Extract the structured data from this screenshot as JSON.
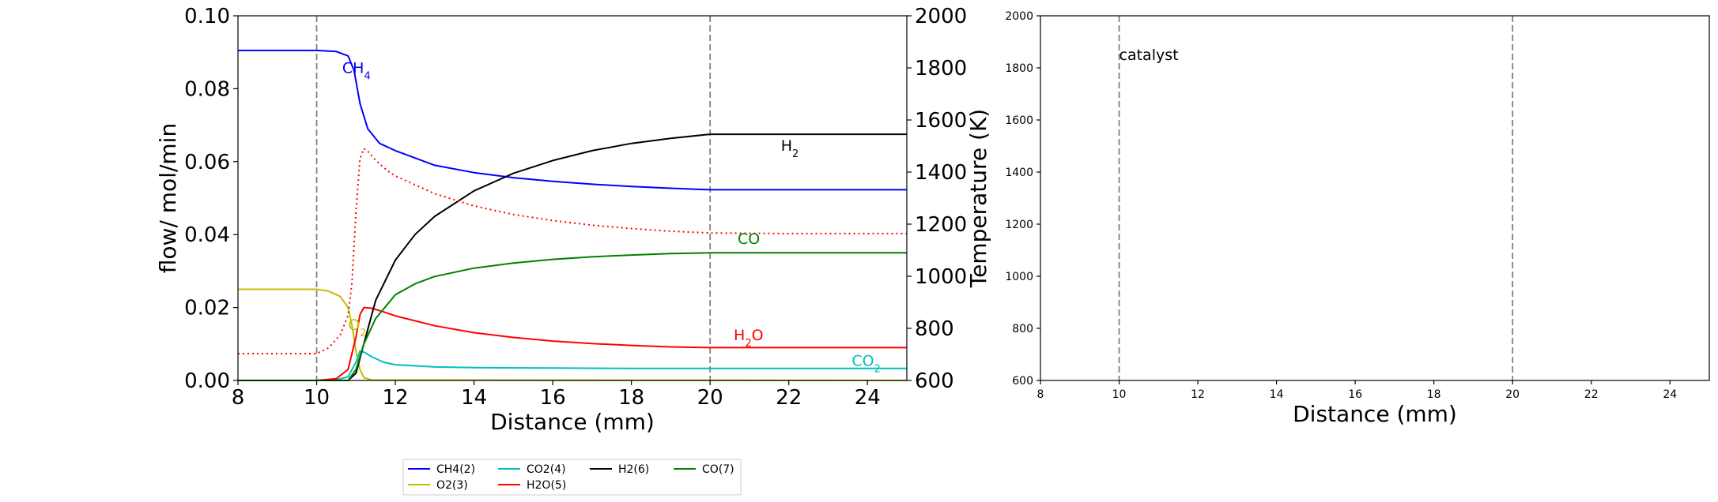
{
  "colors": {
    "CH4": "#0000ff",
    "O2": "#bfbf00",
    "CO2": "#00bfbf",
    "H2O": "#ff0000",
    "H2": "#000000",
    "CO": "#008000",
    "vline": "#808080"
  },
  "chart_data": [
    {
      "type": "line",
      "panel": "left",
      "xlabel": "Distance (mm)",
      "ylabel": "flow/ mol/min",
      "y2label": "Temperature (K)",
      "xlim": [
        8,
        25
      ],
      "ylim": [
        0,
        0.1
      ],
      "y2lim": [
        600,
        2000
      ],
      "xticks": [
        8,
        10,
        12,
        14,
        16,
        18,
        20,
        22,
        24
      ],
      "yticks": [
        0.0,
        0.02,
        0.04,
        0.06,
        0.08,
        0.1
      ],
      "ytick_labels": [
        "0.00",
        "0.02",
        "0.04",
        "0.06",
        "0.08",
        "0.10"
      ],
      "y2ticks": [
        600,
        800,
        1000,
        1200,
        1400,
        1600,
        1800,
        2000
      ],
      "vlines": [
        10,
        20
      ],
      "series": [
        {
          "name": "CH4(2)",
          "color_key": "CH4",
          "x": [
            8,
            10,
            10.5,
            10.8,
            10.95,
            11.1,
            11.3,
            11.6,
            12,
            13,
            14,
            15,
            16,
            17,
            18,
            19,
            20,
            22,
            25
          ],
          "y": [
            0.0905,
            0.0905,
            0.0902,
            0.089,
            0.085,
            0.076,
            0.069,
            0.065,
            0.063,
            0.059,
            0.057,
            0.0556,
            0.0546,
            0.0538,
            0.0532,
            0.0527,
            0.0523,
            0.0523,
            0.0523
          ]
        },
        {
          "name": "O2(3)",
          "color_key": "O2",
          "x": [
            8,
            10,
            10.3,
            10.6,
            10.8,
            10.9,
            11.0,
            11.1,
            11.2,
            11.4,
            25
          ],
          "y": [
            0.025,
            0.025,
            0.0245,
            0.023,
            0.02,
            0.015,
            0.008,
            0.003,
            0.0008,
            0.0001,
            0.0
          ]
        },
        {
          "name": "CO2(4)",
          "color_key": "CO2",
          "x": [
            8,
            10,
            10.5,
            10.8,
            11.0,
            11.1,
            11.2,
            11.4,
            11.7,
            12,
            13,
            14,
            16,
            18,
            20,
            25
          ],
          "y": [
            0.0,
            0.0,
            0.0002,
            0.001,
            0.005,
            0.008,
            0.0078,
            0.0065,
            0.005,
            0.0043,
            0.0037,
            0.0035,
            0.0034,
            0.0033,
            0.0033,
            0.0033
          ]
        },
        {
          "name": "H2O(5)",
          "color_key": "H2O",
          "x": [
            8,
            10,
            10.5,
            10.8,
            11.0,
            11.1,
            11.2,
            11.4,
            11.7,
            12,
            13,
            14,
            15,
            16,
            17,
            18,
            19,
            20,
            25
          ],
          "y": [
            0.0,
            0.0,
            0.0005,
            0.003,
            0.012,
            0.018,
            0.02,
            0.0198,
            0.0188,
            0.0177,
            0.015,
            0.0131,
            0.0118,
            0.0108,
            0.0101,
            0.0096,
            0.0092,
            0.009,
            0.009
          ]
        },
        {
          "name": "H2(6)",
          "color_key": "H2",
          "x": [
            8,
            10,
            10.8,
            11.0,
            11.2,
            11.5,
            12,
            12.5,
            13,
            14,
            15,
            16,
            17,
            18,
            19,
            20,
            25
          ],
          "y": [
            0.0,
            0.0,
            0.0,
            0.002,
            0.01,
            0.022,
            0.033,
            0.04,
            0.045,
            0.052,
            0.0568,
            0.0603,
            0.063,
            0.065,
            0.0664,
            0.0675,
            0.0675
          ]
        },
        {
          "name": "CO(7)",
          "color_key": "CO",
          "x": [
            8,
            10,
            10.8,
            11.0,
            11.2,
            11.5,
            12,
            12.5,
            13,
            14,
            15,
            16,
            17,
            18,
            19,
            20,
            25
          ],
          "y": [
            0.0,
            0.0,
            0.0,
            0.003,
            0.01,
            0.017,
            0.0235,
            0.0265,
            0.0285,
            0.0308,
            0.0322,
            0.0332,
            0.0339,
            0.0344,
            0.0348,
            0.035,
            0.035
          ]
        },
        {
          "name": "Temperature",
          "color_key": "H2O",
          "dashed": true,
          "axis": "y2",
          "x": [
            8,
            10,
            10.3,
            10.6,
            10.8,
            10.9,
            11.0,
            11.1,
            11.2,
            11.3,
            11.5,
            11.8,
            12,
            13,
            14,
            15,
            16,
            17,
            18,
            19,
            20,
            22,
            25
          ],
          "y": [
            703,
            703,
            725,
            775,
            850,
            980,
            1250,
            1450,
            1490,
            1480,
            1445,
            1405,
            1385,
            1317,
            1270,
            1237,
            1214,
            1196,
            1183,
            1173,
            1166,
            1164,
            1164
          ]
        }
      ],
      "annotations": [
        {
          "text": "CH",
          "sub": "4",
          "x": 10.65,
          "y": 0.0843,
          "color_key": "CH4"
        },
        {
          "text": "H",
          "sub": "2",
          "x": 21.8,
          "y": 0.063,
          "color_key": "H2"
        },
        {
          "text": "CO",
          "sub": "",
          "x": 20.7,
          "y": 0.0375,
          "color_key": "CO"
        },
        {
          "text": "H",
          "sub": "2",
          "post": "O",
          "x": 20.6,
          "y": 0.011,
          "color_key": "H2O"
        },
        {
          "text": "CO",
          "sub": "2",
          "x": 23.6,
          "y": 0.004,
          "color_key": "CO2"
        },
        {
          "text": "O",
          "sub": "2",
          "x": 10.8,
          "y": 0.0138,
          "color_key": "O2"
        }
      ],
      "legend": {
        "placement": "below",
        "entries": [
          {
            "label": "CH4(2)",
            "color_key": "CH4"
          },
          {
            "label": "CO2(4)",
            "color_key": "CO2"
          },
          {
            "label": "H2(6)",
            "color_key": "H2"
          },
          {
            "label": "CO(7)",
            "color_key": "CO"
          },
          {
            "label": "O2(3)",
            "color_key": "O2"
          },
          {
            "label": "H2O(5)",
            "color_key": "H2O"
          }
        ]
      }
    },
    {
      "type": "line",
      "panel": "right",
      "xlabel": "Distance (mm)",
      "xlim": [
        8,
        25
      ],
      "ylim": [
        600,
        2000
      ],
      "xticks": [
        8,
        10,
        12,
        14,
        16,
        18,
        20,
        22,
        24
      ],
      "yticks": [
        600,
        800,
        1000,
        1200,
        1400,
        1600,
        1800,
        2000
      ],
      "vlines": [
        10,
        20
      ],
      "annotations": [
        {
          "text": "catalyst",
          "x": 10.0,
          "y": 1830
        }
      ],
      "series": []
    }
  ]
}
